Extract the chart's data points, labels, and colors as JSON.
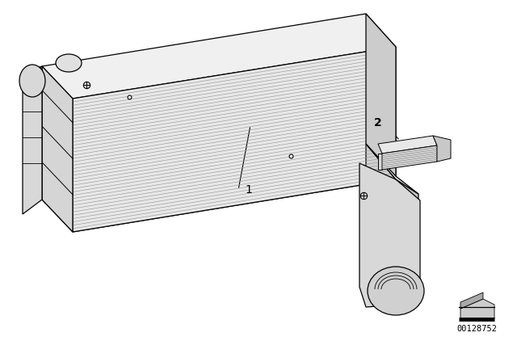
{
  "background_color": "#ffffff",
  "part_number": "00128752",
  "label_1": "1",
  "label_2": "2",
  "line_color": "#000000",
  "top_face_color": "#f0f0f0",
  "fin_face_color": "#e0e0e0",
  "end_cap_color": "#d8d8d8",
  "bottom_face_color": "#c8c8c8",
  "fin_line_color": "#999999",
  "n_fins": 40
}
